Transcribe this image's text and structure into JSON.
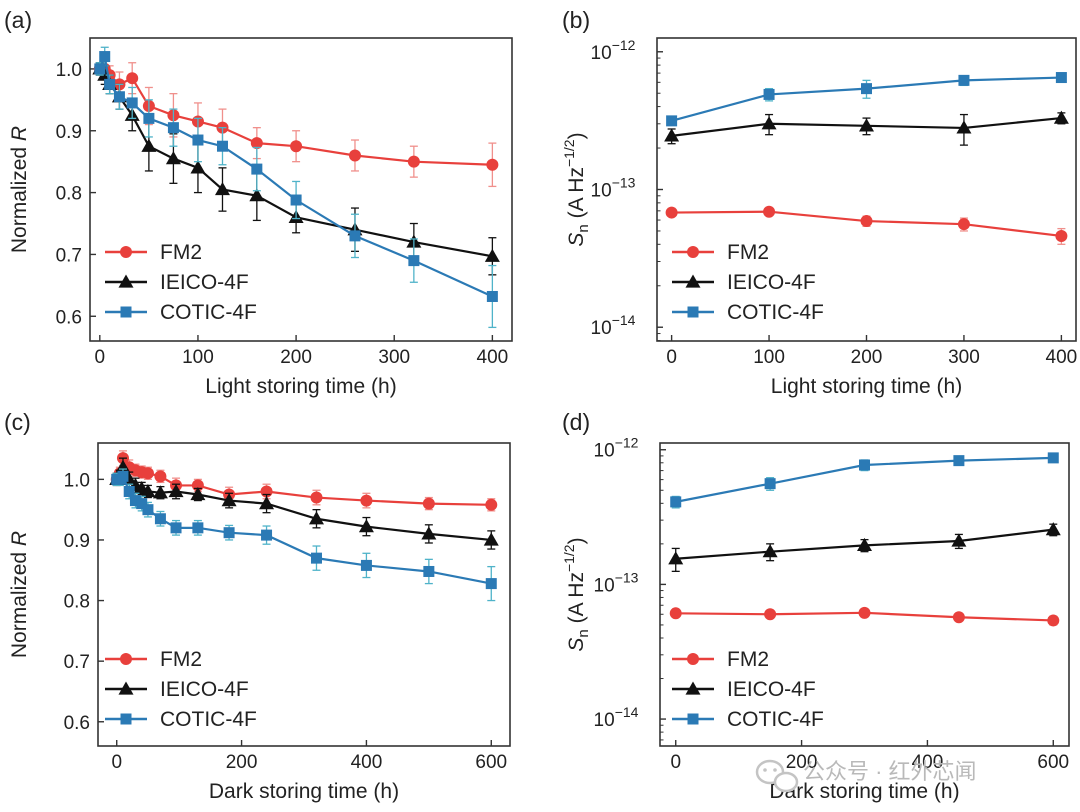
{
  "watermark": "公众号 · 红外芯闻",
  "watermark_icon": "wechat-logo-icon",
  "colors": {
    "FM2": "#e8403c",
    "IEICO-4F": "#111111",
    "COTIC-4F": "#2b7ab5",
    "axis": "#333333"
  },
  "chart_data": [
    {
      "id": "a",
      "panel_label": "(a)",
      "type": "line",
      "xlabel": "Light storing time (h)",
      "ylabel_main": "Normalized ",
      "ylabel_italic": "R",
      "xlim": [
        -10,
        420
      ],
      "ylim": [
        0.56,
        1.05
      ],
      "yscale": "linear",
      "xticks": [
        0,
        100,
        200,
        300,
        400
      ],
      "xtick_labels": [
        "0",
        "100",
        "200",
        "300",
        "400"
      ],
      "yticks": [
        0.6,
        0.7,
        0.8,
        0.9,
        1.0
      ],
      "ytick_labels": [
        "0.6",
        "0.7",
        "0.8",
        "0.9",
        "1.0"
      ],
      "legend": [
        "FM2",
        "IEICO-4F",
        "COTIC-4F"
      ],
      "legend_position": "lower-left",
      "series": [
        {
          "name": "FM2",
          "marker": "circle",
          "err_color": "#f0908c",
          "x": [
            0,
            5,
            10,
            20,
            33,
            50,
            75,
            100,
            125,
            160,
            200,
            260,
            320,
            400
          ],
          "y": [
            1.0,
            1.0,
            0.99,
            0.975,
            0.985,
            0.94,
            0.925,
            0.915,
            0.905,
            0.88,
            0.875,
            0.86,
            0.85,
            0.845
          ],
          "err": [
            0.01,
            0.015,
            0.015,
            0.02,
            0.025,
            0.03,
            0.035,
            0.03,
            0.03,
            0.025,
            0.025,
            0.025,
            0.025,
            0.035
          ]
        },
        {
          "name": "IEICO-4F",
          "marker": "triangle",
          "err_color": "#111111",
          "x": [
            0,
            5,
            10,
            20,
            33,
            50,
            75,
            100,
            125,
            160,
            200,
            260,
            320,
            400
          ],
          "y": [
            1.0,
            0.99,
            0.975,
            0.955,
            0.925,
            0.875,
            0.855,
            0.84,
            0.805,
            0.795,
            0.76,
            0.74,
            0.72,
            0.697
          ],
          "err": [
            0.01,
            0.015,
            0.015,
            0.02,
            0.025,
            0.04,
            0.04,
            0.04,
            0.035,
            0.04,
            0.025,
            0.035,
            0.03,
            0.03
          ]
        },
        {
          "name": "COTIC-4F",
          "marker": "square",
          "err_color": "#4fb3c9",
          "x": [
            0,
            5,
            10,
            20,
            33,
            50,
            75,
            100,
            125,
            160,
            200,
            260,
            320,
            400
          ],
          "y": [
            1.0,
            1.02,
            0.975,
            0.955,
            0.945,
            0.92,
            0.905,
            0.885,
            0.875,
            0.838,
            0.788,
            0.73,
            0.69,
            0.632
          ],
          "err": [
            0.01,
            0.015,
            0.015,
            0.02,
            0.025,
            0.03,
            0.03,
            0.035,
            0.03,
            0.035,
            0.03,
            0.035,
            0.035,
            0.05
          ]
        }
      ]
    },
    {
      "id": "b",
      "panel_label": "(b)",
      "type": "line",
      "xlabel": "Light storing time (h)",
      "ylabel_main": "S",
      "ylabel_sub": "n",
      "ylabel_rest": " (A Hz",
      "ylabel_sup": "−1/2",
      "ylabel_end": ")",
      "xlim": [
        -15,
        415
      ],
      "ylim": [
        -14.1,
        -11.9
      ],
      "yscale": "log10",
      "xticks": [
        0,
        100,
        200,
        300,
        400
      ],
      "xtick_labels": [
        "0",
        "100",
        "200",
        "300",
        "400"
      ],
      "yticks": [
        -14,
        -13,
        -12
      ],
      "ytick_base": "10",
      "ytick_exps": [
        "−14",
        "−13",
        "−12"
      ],
      "legend": [
        "FM2",
        "IEICO-4F",
        "COTIC-4F"
      ],
      "legend_position": "lower-left",
      "series": [
        {
          "name": "FM2",
          "marker": "circle",
          "err_color": "#f0908c",
          "x": [
            0,
            100,
            200,
            300,
            400
          ],
          "y": [
            6.8e-14,
            6.9e-14,
            5.9e-14,
            5.6e-14,
            4.6e-14
          ],
          "err": [
            4e-15,
            4e-15,
            5e-15,
            6e-15,
            6e-15
          ]
        },
        {
          "name": "IEICO-4F",
          "marker": "triangle",
          "err_color": "#111111",
          "x": [
            0,
            100,
            200,
            300,
            400
          ],
          "y": [
            2.45e-13,
            3e-13,
            2.9e-13,
            2.8e-13,
            3.3e-13
          ],
          "err": [
            3e-14,
            5e-14,
            4e-14,
            7e-14,
            3e-14
          ]
        },
        {
          "name": "COTIC-4F",
          "marker": "square",
          "err_color": "#4fb3c9",
          "x": [
            0,
            100,
            200,
            300,
            400
          ],
          "y": [
            3.15e-13,
            4.9e-13,
            5.4e-13,
            6.2e-13,
            6.5e-13
          ],
          "err": [
            2e-14,
            5e-14,
            8e-14,
            5e-14,
            4e-14
          ]
        }
      ]
    },
    {
      "id": "c",
      "panel_label": "(c)",
      "type": "line",
      "xlabel": "Dark storing time (h)",
      "ylabel_main": "Normalized ",
      "ylabel_italic": "R",
      "xlim": [
        -30,
        630
      ],
      "ylim": [
        0.56,
        1.06
      ],
      "yscale": "linear",
      "xticks": [
        0,
        200,
        400,
        600
      ],
      "xtick_labels": [
        "0",
        "200",
        "400",
        "600"
      ],
      "yticks": [
        0.6,
        0.7,
        0.8,
        0.9,
        1.0
      ],
      "ytick_labels": [
        "0.6",
        "0.7",
        "0.8",
        "0.9",
        "1.0"
      ],
      "legend": [
        "FM2",
        "IEICO-4F",
        "COTIC-4F"
      ],
      "legend_position": "lower-left",
      "series": [
        {
          "name": "FM2",
          "marker": "circle",
          "err_color": "#f0908c",
          "x": [
            0,
            5,
            10,
            20,
            30,
            40,
            50,
            70,
            95,
            130,
            180,
            240,
            320,
            400,
            500,
            600
          ],
          "y": [
            1.0,
            1.01,
            1.035,
            1.02,
            1.015,
            1.012,
            1.01,
            1.005,
            0.99,
            0.99,
            0.975,
            0.98,
            0.97,
            0.965,
            0.96,
            0.958
          ],
          "err": [
            0.01,
            0.01,
            0.012,
            0.012,
            0.01,
            0.01,
            0.01,
            0.01,
            0.012,
            0.01,
            0.012,
            0.012,
            0.012,
            0.012,
            0.01,
            0.01
          ]
        },
        {
          "name": "IEICO-4F",
          "marker": "triangle",
          "err_color": "#111111",
          "x": [
            0,
            5,
            10,
            20,
            30,
            40,
            50,
            70,
            95,
            130,
            180,
            240,
            320,
            400,
            500,
            600
          ],
          "y": [
            1.0,
            1.005,
            1.02,
            1.0,
            0.99,
            0.985,
            0.98,
            0.978,
            0.98,
            0.975,
            0.965,
            0.96,
            0.935,
            0.922,
            0.91,
            0.9
          ],
          "err": [
            0.01,
            0.01,
            0.015,
            0.012,
            0.012,
            0.01,
            0.01,
            0.01,
            0.012,
            0.01,
            0.012,
            0.015,
            0.015,
            0.015,
            0.015,
            0.015
          ]
        },
        {
          "name": "COTIC-4F",
          "marker": "square",
          "err_color": "#4fb3c9",
          "x": [
            0,
            5,
            10,
            20,
            30,
            40,
            50,
            70,
            95,
            130,
            180,
            240,
            320,
            400,
            500,
            600
          ],
          "y": [
            1.0,
            1.0,
            1.005,
            0.98,
            0.965,
            0.96,
            0.95,
            0.935,
            0.92,
            0.92,
            0.912,
            0.908,
            0.87,
            0.858,
            0.848,
            0.828
          ],
          "err": [
            0.01,
            0.01,
            0.012,
            0.012,
            0.012,
            0.012,
            0.012,
            0.012,
            0.012,
            0.012,
            0.012,
            0.015,
            0.02,
            0.02,
            0.02,
            0.028
          ]
        }
      ]
    },
    {
      "id": "d",
      "panel_label": "(d)",
      "type": "line",
      "xlabel": "Dark storing time (h)",
      "ylabel_main": "S",
      "ylabel_sub": "n",
      "ylabel_rest": " (A Hz",
      "ylabel_sup": "−1/2",
      "ylabel_end": ")",
      "xlim": [
        -25,
        625
      ],
      "ylim": [
        -14.2,
        -11.95
      ],
      "yscale": "log10",
      "xticks": [
        0,
        200,
        400,
        600
      ],
      "xtick_labels": [
        "0",
        "200",
        "400",
        "600"
      ],
      "yticks": [
        -14,
        -13,
        -12
      ],
      "ytick_base": "10",
      "ytick_exps": [
        "−14",
        "−13",
        "−12"
      ],
      "legend": [
        "FM2",
        "IEICO-4F",
        "COTIC-4F"
      ],
      "legend_position": "lower-left",
      "series": [
        {
          "name": "FM2",
          "marker": "circle",
          "err_color": "#f0908c",
          "x": [
            0,
            150,
            300,
            450,
            600
          ],
          "y": [
            6.1e-14,
            6e-14,
            6.15e-14,
            5.7e-14,
            5.4e-14
          ],
          "err": [
            3e-15,
            3e-15,
            4e-15,
            3e-15,
            4e-15
          ]
        },
        {
          "name": "IEICO-4F",
          "marker": "triangle",
          "err_color": "#111111",
          "x": [
            0,
            150,
            300,
            450,
            600
          ],
          "y": [
            1.55e-13,
            1.75e-13,
            1.95e-13,
            2.1e-13,
            2.55e-13
          ],
          "err": [
            3e-14,
            2.5e-14,
            2e-14,
            2.5e-14,
            2.5e-14
          ]
        },
        {
          "name": "COTIC-4F",
          "marker": "square",
          "err_color": "#4fb3c9",
          "x": [
            0,
            150,
            300,
            450,
            600
          ],
          "y": [
            4.1e-13,
            5.6e-13,
            7.7e-13,
            8.3e-13,
            8.7e-13
          ],
          "err": [
            4e-14,
            6e-14,
            7e-14,
            3e-14,
            3e-14
          ]
        }
      ]
    }
  ]
}
